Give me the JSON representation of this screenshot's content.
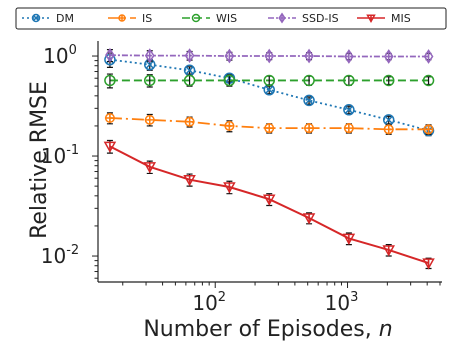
{
  "chart_data": {
    "type": "line",
    "title": "",
    "xlabel": "Number of Episodes,",
    "xlabel_var": "n",
    "ylabel": "Relative RMSE",
    "xscale": "log",
    "yscale": "log",
    "xlim": [
      13,
      5000
    ],
    "ylim": [
      0.0055,
      1.35
    ],
    "grid": false,
    "legend_position": "top",
    "x": [
      16,
      32,
      64,
      128,
      256,
      512,
      1024,
      2048,
      4096
    ],
    "x_ticks": [
      {
        "value": 100,
        "base": "10",
        "exp": "2"
      },
      {
        "value": 1000,
        "base": "10",
        "exp": "3"
      }
    ],
    "y_ticks": [
      {
        "value": 0.01,
        "base": "10",
        "exp": "-2"
      },
      {
        "value": 0.1,
        "base": "10",
        "exp": "-1"
      },
      {
        "value": 1,
        "base": "10",
        "exp": "0"
      }
    ],
    "series": [
      {
        "name": "DM",
        "color": "#1f77b4",
        "dash": "2,3",
        "marker": "xcircle",
        "values": [
          0.92,
          0.82,
          0.72,
          0.6,
          0.46,
          0.36,
          0.29,
          0.23,
          0.18
        ],
        "err": [
          0.15,
          0.1,
          0.06,
          0.05,
          0.04,
          0.03,
          0.025,
          0.02,
          0.02
        ]
      },
      {
        "name": "IS",
        "color": "#ff7f0e",
        "dash": "12,4,2,4",
        "marker": "plus",
        "values": [
          0.24,
          0.23,
          0.22,
          0.2,
          0.19,
          0.19,
          0.19,
          0.185,
          0.185
        ],
        "err": [
          0.03,
          0.03,
          0.025,
          0.025,
          0.02,
          0.02,
          0.02,
          0.02,
          0.02
        ]
      },
      {
        "name": "WIS",
        "color": "#2ca02c",
        "dash": "8,4",
        "marker": "circle",
        "values": [
          0.57,
          0.57,
          0.57,
          0.57,
          0.57,
          0.57,
          0.57,
          0.57,
          0.57
        ],
        "err": [
          0.09,
          0.08,
          0.07,
          0.07,
          0.06,
          0.06,
          0.06,
          0.05,
          0.05
        ]
      },
      {
        "name": "SSD-IS",
        "color": "#9467bd",
        "dash": "6,2,2,2",
        "marker": "diamond",
        "values": [
          1.02,
          1.01,
          1.01,
          1.0,
          1.0,
          1.0,
          0.99,
          0.99,
          0.99
        ],
        "err": [
          0.14,
          0.12,
          0.1,
          0.09,
          0.08,
          0.08,
          0.07,
          0.07,
          0.07
        ]
      },
      {
        "name": "MIS",
        "color": "#d62728",
        "dash": "",
        "marker": "triangle",
        "values": [
          0.125,
          0.078,
          0.058,
          0.049,
          0.037,
          0.024,
          0.015,
          0.0115,
          0.0085
        ],
        "err": [
          0.018,
          0.011,
          0.008,
          0.007,
          0.005,
          0.003,
          0.002,
          0.0015,
          0.001
        ]
      }
    ]
  }
}
